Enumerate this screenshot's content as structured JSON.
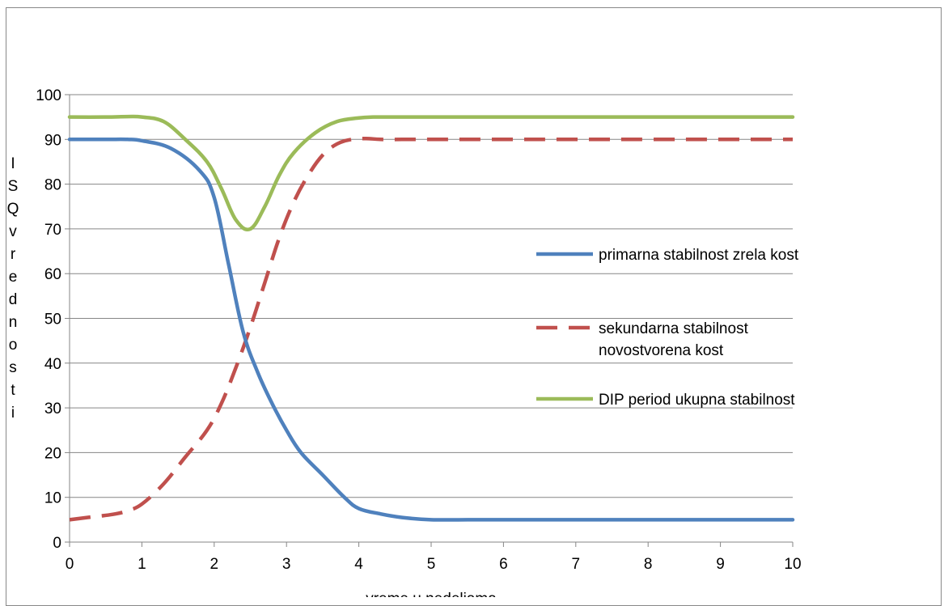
{
  "chart_data": {
    "type": "line",
    "title": "",
    "xlabel": "vreme u nedeljama",
    "ylabel": "ISQ vrednosti",
    "xlim": [
      0,
      10
    ],
    "ylim": [
      0,
      100
    ],
    "x_ticks": [
      0,
      1,
      2,
      3,
      4,
      5,
      6,
      7,
      8,
      9,
      10
    ],
    "y_ticks": [
      0,
      10,
      20,
      30,
      40,
      50,
      60,
      70,
      80,
      90,
      100
    ],
    "grid": "horizontal",
    "legend_position": "right",
    "series": [
      {
        "name": "primarna stabilnost zrela kost",
        "color": "#4F81BD",
        "style": "solid",
        "x": [
          0,
          0.5,
          0.8,
          1,
          1.4,
          1.8,
          2,
          2.2,
          2.4,
          2.6,
          2.8,
          3,
          3.2,
          3.5,
          3.8,
          4,
          4.3,
          4.6,
          5,
          5.5,
          6,
          7,
          8,
          9,
          10
        ],
        "values": [
          90,
          90,
          90,
          89.7,
          88,
          83,
          77,
          62,
          47,
          38,
          31,
          25,
          20,
          15,
          10,
          7.5,
          6.3,
          5.5,
          5,
          5,
          5,
          5,
          5,
          5,
          5
        ]
      },
      {
        "name": "sekundarna stabilnost novostvorena kost",
        "color": "#C0504D",
        "style": "dashed",
        "x": [
          0,
          0.3,
          0.6,
          0.8,
          1,
          1.3,
          1.6,
          1.9,
          2.1,
          2.3,
          2.5,
          2.7,
          2.9,
          3.1,
          3.3,
          3.5,
          3.7,
          3.9,
          4.1,
          4.3,
          4.6,
          5,
          6,
          7,
          8,
          9,
          10
        ],
        "values": [
          5,
          5.6,
          6.2,
          7,
          8.5,
          13,
          19,
          25,
          31,
          39,
          48,
          58,
          68,
          76,
          82,
          86.5,
          89,
          90,
          90.2,
          90,
          90,
          90,
          90,
          90,
          90,
          90,
          90
        ]
      },
      {
        "name": "DIP period ukupna stabilnost",
        "color": "#9BBB59",
        "style": "solid",
        "x": [
          0,
          0.5,
          0.8,
          1,
          1.3,
          1.6,
          1.9,
          2.1,
          2.3,
          2.5,
          2.7,
          2.9,
          3.1,
          3.4,
          3.7,
          4,
          4.2,
          4.5,
          5,
          6,
          7,
          8,
          9,
          10
        ],
        "values": [
          95,
          95,
          95.1,
          95,
          94,
          90,
          85,
          79,
          72,
          70,
          75,
          82,
          87,
          91.5,
          94,
          94.8,
          95,
          95,
          95,
          95,
          95,
          95,
          95,
          95
        ]
      }
    ]
  }
}
